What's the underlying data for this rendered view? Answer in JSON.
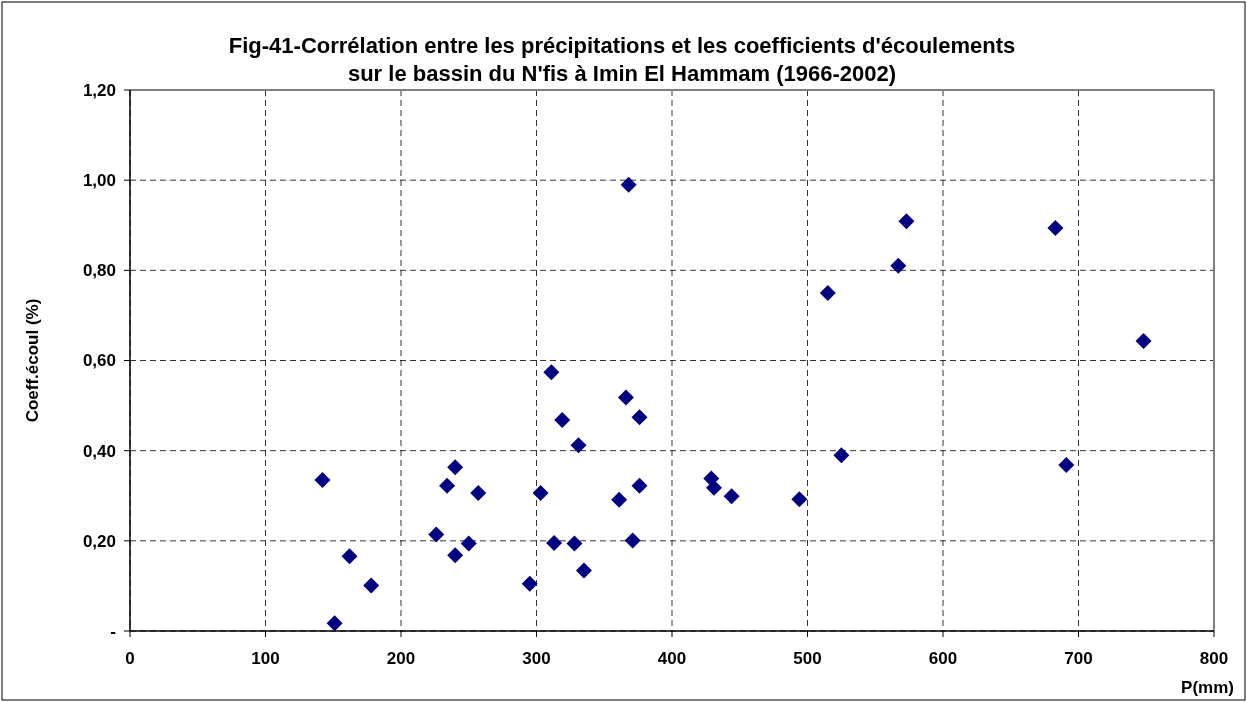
{
  "chart_data": {
    "type": "scatter",
    "title": "Fig-41-Corrélation entre les précipitations et les coefficients d'écoulements\nsur le bassin du N'fis à Imin El Hammam (1966-2002)",
    "xlabel": "P(mm)",
    "ylabel": "Coeff.écoul (%)",
    "xlim": [
      0,
      800
    ],
    "xticks": [
      0,
      100,
      200,
      300,
      400,
      500,
      600,
      700,
      800
    ],
    "ylim": [
      0,
      1.2
    ],
    "yticks": [
      {
        "value": 0,
        "label": "-"
      },
      {
        "value": 0.2,
        "label": "0,20"
      },
      {
        "value": 0.4,
        "label": "0,40"
      },
      {
        "value": 0.6,
        "label": "0,60"
      },
      {
        "value": 0.8,
        "label": "0,80"
      },
      {
        "value": 1.0,
        "label": "1,00"
      },
      {
        "value": 1.2,
        "label": "1,20"
      }
    ],
    "grid": true,
    "marker": "diamond",
    "series": [
      {
        "color": "#000080",
        "x": [
          142,
          151,
          162,
          178,
          226,
          234,
          240,
          240,
          250,
          257,
          295,
          303,
          311,
          313,
          319,
          328,
          331,
          335,
          361,
          366,
          368,
          371,
          376,
          376,
          429,
          431,
          444,
          494,
          515,
          525,
          567,
          573,
          683,
          691,
          748
        ],
        "values": [
          0.335,
          0.017,
          0.166,
          0.101,
          0.214,
          0.322,
          0.168,
          0.363,
          0.194,
          0.306,
          0.105,
          0.306,
          0.574,
          0.195,
          0.468,
          0.194,
          0.412,
          0.134,
          0.291,
          0.518,
          0.99,
          0.201,
          0.474,
          0.322,
          0.338,
          0.318,
          0.299,
          0.292,
          0.75,
          0.39,
          0.81,
          0.909,
          0.894,
          0.368,
          0.643
        ]
      }
    ]
  }
}
